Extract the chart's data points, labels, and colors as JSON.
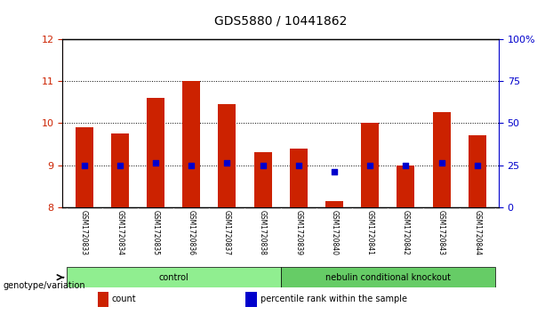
{
  "title": "GDS5880 / 10441862",
  "samples": [
    "GSM1720833",
    "GSM1720834",
    "GSM1720835",
    "GSM1720836",
    "GSM1720837",
    "GSM1720838",
    "GSM1720839",
    "GSM1720840",
    "GSM1720841",
    "GSM1720842",
    "GSM1720843",
    "GSM1720844"
  ],
  "bar_values": [
    9.9,
    9.75,
    10.6,
    11.0,
    10.45,
    9.3,
    9.4,
    8.15,
    10.0,
    9.0,
    10.25,
    9.7
  ],
  "bar_bottom": 8.0,
  "percentile_values": [
    9.0,
    9.0,
    9.05,
    9.0,
    9.05,
    9.0,
    9.0,
    8.85,
    9.0,
    9.0,
    9.05,
    9.0
  ],
  "bar_color": "#cc2200",
  "dot_color": "#0000cc",
  "ylim": [
    8.0,
    12.0
  ],
  "yticks_left": [
    8,
    9,
    10,
    11,
    12
  ],
  "yticks_right": [
    0,
    25,
    50,
    75,
    100
  ],
  "ylabel_left_color": "#cc2200",
  "ylabel_right_color": "#0000cc",
  "groups": [
    {
      "label": "control",
      "start": 0,
      "end": 6,
      "color": "#90ee90"
    },
    {
      "label": "nebulin conditional knockout",
      "start": 6,
      "end": 12,
      "color": "#66cc66"
    }
  ],
  "group_row_label": "genotype/variation",
  "legend_items": [
    {
      "color": "#cc2200",
      "label": "count"
    },
    {
      "color": "#0000cc",
      "label": "percentile rank within the sample"
    }
  ],
  "background_color": "#ffffff",
  "plot_bg_color": "#ffffff",
  "tick_label_area_color": "#c8c8c8",
  "dotted_line_color": "#000000",
  "bar_width": 0.5
}
